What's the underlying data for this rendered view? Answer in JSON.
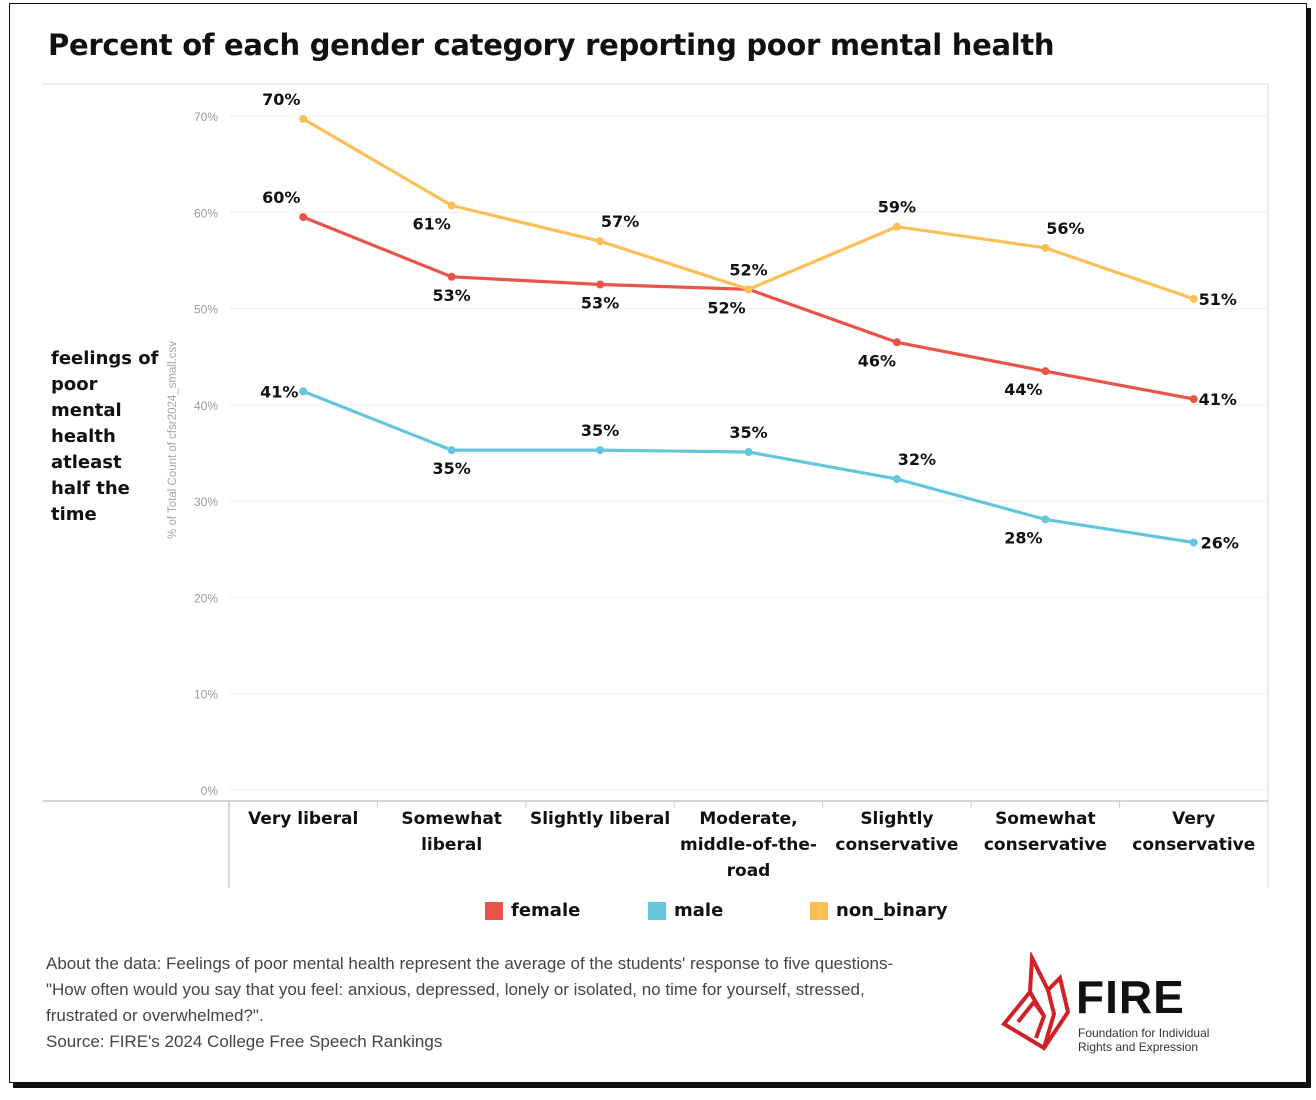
{
  "title": "Percent of each gender category reporting poor mental health",
  "row_label": "feelings of poor mental health atleast half the time",
  "legend": [
    {
      "label": "female",
      "color": "#e8544a"
    },
    {
      "label": "male",
      "color": "#63c6db"
    },
    {
      "label": "non_binary",
      "color": "#fbbf58"
    }
  ],
  "footer": {
    "about_line1": "About the data: Feelings of poor mental health represent the average of the students' response to five questions-",
    "about_line2": "\"How often would you say that you feel: anxious, depressed, lonely or isolated, no time for yourself, stressed,",
    "about_line3": "frustrated or overwhelmed?\".",
    "source": "Source: FIRE's 2024 College Free Speech Rankings"
  },
  "logo": {
    "word": "FIRE",
    "sub_line1": "Foundation for Individual",
    "sub_line2": "Rights and Expression"
  },
  "chart_data": {
    "type": "line",
    "title": "Percent of each gender category reporting poor mental health",
    "ylabel": "% of Total Count of cfsr2024_small.csv",
    "ylim": [
      0,
      70
    ],
    "yticks": [
      "0%",
      "10%",
      "20%",
      "30%",
      "40%",
      "50%",
      "60%",
      "70%"
    ],
    "categories": [
      "Very liberal",
      "Somewhat liberal",
      "Slightly liberal",
      "Moderate, middle-of-the-road",
      "Slightly conservative",
      "Somewhat conservative",
      "Very conservative"
    ],
    "category_lines": [
      [
        "Very liberal"
      ],
      [
        "Somewhat",
        "liberal"
      ],
      [
        "Slightly liberal"
      ],
      [
        "Moderate,",
        "middle-of-the-",
        "road"
      ],
      [
        "Slightly",
        "conservative"
      ],
      [
        "Somewhat",
        "conservative"
      ],
      [
        "Very",
        "conservative"
      ]
    ],
    "grid": true,
    "legend_position": "bottom",
    "series": [
      {
        "name": "female",
        "color": "#e8544a",
        "values": [
          59.5,
          53.3,
          52.5,
          52.0,
          46.5,
          43.5,
          40.6
        ],
        "labels": [
          "60%",
          "53%",
          "53%",
          "52%",
          "46%",
          "44%",
          "41%"
        ]
      },
      {
        "name": "male",
        "color": "#63c6db",
        "values": [
          41.4,
          35.3,
          35.3,
          35.1,
          32.3,
          28.1,
          25.7
        ],
        "labels": [
          "41%",
          "35%",
          "35%",
          "35%",
          "32%",
          "28%",
          "26%"
        ]
      },
      {
        "name": "non_binary",
        "color": "#fbbf58",
        "values": [
          69.7,
          60.7,
          57.0,
          52.0,
          58.5,
          56.3,
          51.0
        ],
        "labels": [
          "70%",
          "61%",
          "57%",
          "52%",
          "59%",
          "56%",
          "51%"
        ]
      }
    ]
  }
}
